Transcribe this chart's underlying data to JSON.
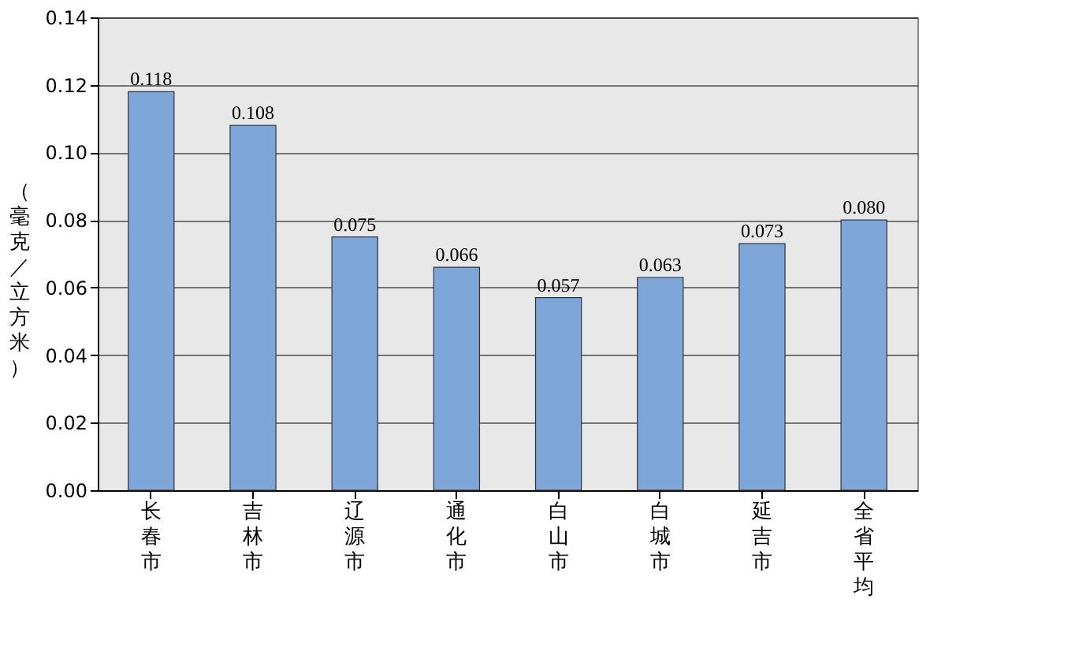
{
  "chart_data": {
    "type": "bar",
    "ylabel": "（毫克／立方米）",
    "categories": [
      "长春市",
      "吉林市",
      "辽源市",
      "通化市",
      "白山市",
      "白城市",
      "延吉市",
      "全省平均"
    ],
    "values": [
      0.118,
      0.108,
      0.075,
      0.066,
      0.057,
      0.063,
      0.073,
      0.08
    ],
    "value_labels": [
      "0.118",
      "0.108",
      "0.075",
      "0.066",
      "0.057",
      "0.063",
      "0.073",
      "0.080"
    ],
    "color": "#7fa6d9",
    "ylim": [
      0,
      0.14
    ],
    "yticks": [
      {
        "value": 0,
        "label": "0.00"
      },
      {
        "value": 0.02,
        "label": "0.02"
      },
      {
        "value": 0.04,
        "label": "0.04"
      },
      {
        "value": 0.06,
        "label": "0.06"
      },
      {
        "value": 0.08,
        "label": "0.08"
      },
      {
        "value": 0.1,
        "label": "0.10"
      },
      {
        "value": 0.12,
        "label": "0.12"
      },
      {
        "value": 0.14,
        "label": "0.14"
      }
    ],
    "grid": "y"
  }
}
